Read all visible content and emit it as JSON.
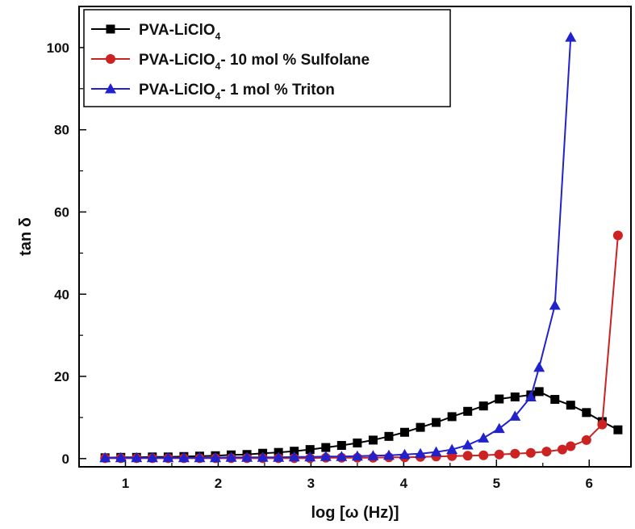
{
  "chart_data": {
    "type": "line",
    "title": "",
    "xlabel": "log [ω (Hz)]",
    "ylabel": "tan δ",
    "xlim": [
      0.5,
      6.45
    ],
    "ylim": [
      -2,
      110
    ],
    "xticks": [
      1,
      2,
      3,
      4,
      5,
      6
    ],
    "yticks": [
      0,
      20,
      40,
      60,
      80,
      100
    ],
    "legend_position": "top-left",
    "series": [
      {
        "name": "PVA-LiClO4",
        "legend_prefix": "PVA-LiClO",
        "legend_subscript": "4",
        "legend_suffix": "",
        "color": "#000000",
        "marker": "square",
        "x": [
          0.78,
          0.95,
          1.12,
          1.29,
          1.46,
          1.63,
          1.8,
          1.97,
          2.14,
          2.31,
          2.48,
          2.65,
          2.82,
          2.99,
          3.16,
          3.33,
          3.5,
          3.67,
          3.84,
          4.01,
          4.18,
          4.35,
          4.52,
          4.69,
          4.86,
          5.03,
          5.2,
          5.37,
          5.46,
          5.63,
          5.8,
          5.97,
          6.14,
          6.31
        ],
        "y": [
          0.2,
          0.3,
          0.3,
          0.4,
          0.4,
          0.5,
          0.6,
          0.7,
          0.9,
          1.0,
          1.3,
          1.5,
          1.8,
          2.2,
          2.7,
          3.2,
          3.8,
          4.5,
          5.4,
          6.4,
          7.6,
          8.8,
          10.2,
          11.5,
          12.8,
          14.5,
          15.0,
          15.5,
          16.3,
          14.4,
          13.0,
          11.2,
          9.0,
          7.0
        ]
      },
      {
        "name": "PVA-LiClO4- 10 mol % Sulfolane",
        "legend_prefix": "PVA-LiClO",
        "legend_subscript": "4",
        "legend_suffix": "- 10 mol % Sulfolane",
        "color": "#cc2222",
        "marker": "circle",
        "x": [
          0.78,
          0.95,
          1.12,
          1.29,
          1.46,
          1.63,
          1.8,
          1.97,
          2.14,
          2.31,
          2.48,
          2.65,
          2.82,
          2.99,
          3.16,
          3.33,
          3.5,
          3.67,
          3.84,
          4.01,
          4.18,
          4.35,
          4.52,
          4.69,
          4.86,
          5.03,
          5.2,
          5.37,
          5.54,
          5.71,
          5.8,
          5.97,
          6.14,
          6.31
        ],
        "y": [
          0.1,
          0.1,
          0.1,
          0.1,
          0.1,
          0.1,
          0.1,
          0.1,
          0.1,
          0.1,
          0.1,
          0.1,
          0.1,
          0.1,
          0.2,
          0.2,
          0.2,
          0.2,
          0.3,
          0.3,
          0.4,
          0.5,
          0.6,
          0.7,
          0.8,
          1.0,
          1.2,
          1.4,
          1.7,
          2.2,
          3.0,
          4.5,
          8.3,
          54.3
        ]
      },
      {
        "name": "PVA-LiClO4- 1 mol % Triton",
        "legend_prefix": "PVA-LiClO",
        "legend_subscript": "4",
        "legend_suffix": "- 1 mol % Triton",
        "color": "#2222cc",
        "marker": "triangle",
        "x": [
          0.78,
          0.95,
          1.12,
          1.29,
          1.46,
          1.63,
          1.8,
          1.97,
          2.14,
          2.31,
          2.48,
          2.65,
          2.82,
          2.99,
          3.16,
          3.33,
          3.5,
          3.67,
          3.84,
          4.01,
          4.18,
          4.35,
          4.52,
          4.69,
          4.86,
          5.03,
          5.2,
          5.37,
          5.46,
          5.63,
          5.8
        ],
        "y": [
          0.2,
          0.2,
          0.2,
          0.2,
          0.2,
          0.2,
          0.2,
          0.2,
          0.3,
          0.3,
          0.3,
          0.3,
          0.4,
          0.4,
          0.5,
          0.5,
          0.6,
          0.7,
          0.8,
          1.0,
          1.2,
          1.6,
          2.2,
          3.3,
          5.0,
          7.3,
          10.3,
          15.0,
          22.2,
          37.3,
          102.5
        ]
      }
    ]
  }
}
